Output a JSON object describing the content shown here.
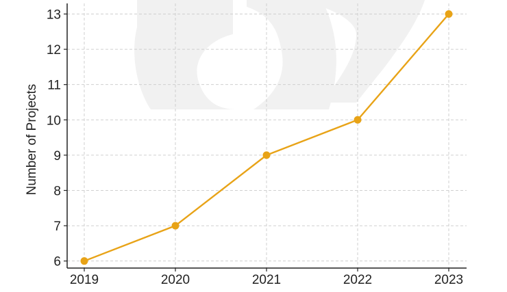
{
  "chart_data": {
    "type": "line",
    "x": [
      "2019",
      "2020",
      "2021",
      "2022",
      "2023"
    ],
    "series": [
      {
        "values": [
          6,
          7,
          9,
          10,
          13
        ],
        "color": "#E8A317"
      }
    ],
    "title": "",
    "xlabel": "",
    "ylabel": "Number of Projects",
    "ylim": [
      5.8,
      13.3
    ],
    "yticks": [
      6,
      7,
      8,
      9,
      10,
      11,
      12,
      13
    ],
    "grid": true,
    "marker": "circle"
  }
}
